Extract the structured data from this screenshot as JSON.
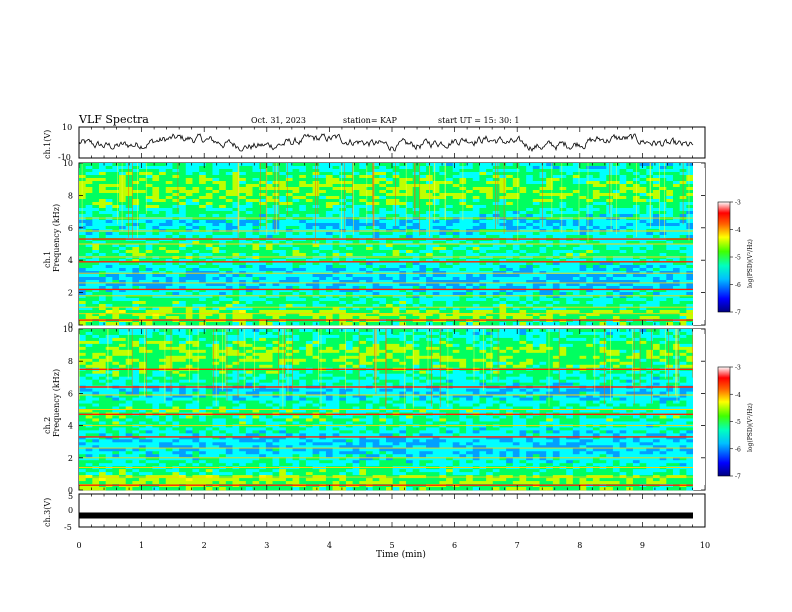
{
  "header": {
    "title": "VLF Spectra",
    "date": "Oct. 31, 2023",
    "station": "station= KAP",
    "start": "start  UT  =   15: 30: 1"
  },
  "colors": {
    "spectrogram_scale": [
      "#000080",
      "#0000ff",
      "#00a0ff",
      "#00ffff",
      "#00ff60",
      "#c0ff00",
      "#ffff00",
      "#ff8000",
      "#ff0000",
      "#ffffff"
    ],
    "trace": "#000000"
  },
  "chart_data": [
    {
      "type": "line",
      "panel": "ch1-waveform",
      "ylabel": "ch.1(V)",
      "ylim": [
        -10,
        10
      ],
      "yticks": [
        "10",
        "-10"
      ],
      "xlim": [
        0,
        9.8
      ],
      "description_level": "noisy waveform fluctuating around 0 V, roughly -4 to +4 V",
      "grid": false
    },
    {
      "type": "heatmap",
      "panel": "ch1-spectrogram",
      "ylabel": "ch.1\nFrequency (kHz)",
      "ylim": [
        0,
        10
      ],
      "yticks": [
        "0",
        "2",
        "4",
        "6",
        "8",
        "10"
      ],
      "xlim": [
        0,
        9.8
      ],
      "colorbar": {
        "label": "log(PSD)(V²/Hz)",
        "ticks": [
          "-3",
          "-4",
          "-5",
          "-6",
          "-7"
        ],
        "range": [
          -7,
          -3
        ]
      },
      "narrowband_lines_khz": [
        0.3,
        0.7,
        1.1,
        1.8,
        2.2,
        2.6,
        3.2,
        3.9,
        4.2,
        5.0,
        5.3,
        5.8,
        6.6
      ],
      "strongest_lines_khz": [
        0.3,
        2.2,
        3.9,
        5.3
      ]
    },
    {
      "type": "heatmap",
      "panel": "ch2-spectrogram",
      "ylabel": "ch.2\nFrequency (kHz)",
      "ylim": [
        0,
        10
      ],
      "yticks": [
        "0",
        "2",
        "4",
        "6",
        "8",
        "10"
      ],
      "xlim": [
        0,
        9.8
      ],
      "colorbar": {
        "label": "log(PSD)(V²/Hz)",
        "ticks": [
          "-3",
          "-4",
          "-5",
          "-6",
          "-7"
        ],
        "range": [
          -7,
          -3
        ]
      },
      "narrowband_lines_khz": [
        0.3,
        0.8,
        1.4,
        2.0,
        2.6,
        3.3,
        4.0,
        4.7,
        5.0,
        5.9,
        6.4,
        7.5
      ],
      "strongest_lines_khz": [
        0.3,
        3.3,
        4.7,
        6.4,
        7.5
      ]
    },
    {
      "type": "line",
      "panel": "ch3-waveform",
      "ylabel": "ch.3(V)",
      "ylim": [
        -5,
        5
      ],
      "yticks": [
        "5",
        "0",
        "-5"
      ],
      "xlim": [
        0,
        9.8
      ],
      "constant_level_v": -1.5,
      "grid": false
    }
  ],
  "xaxis": {
    "label": "Time  (min)",
    "ticks": [
      "0",
      "1",
      "2",
      "3",
      "4",
      "5",
      "6",
      "7",
      "8",
      "9",
      "10"
    ]
  }
}
